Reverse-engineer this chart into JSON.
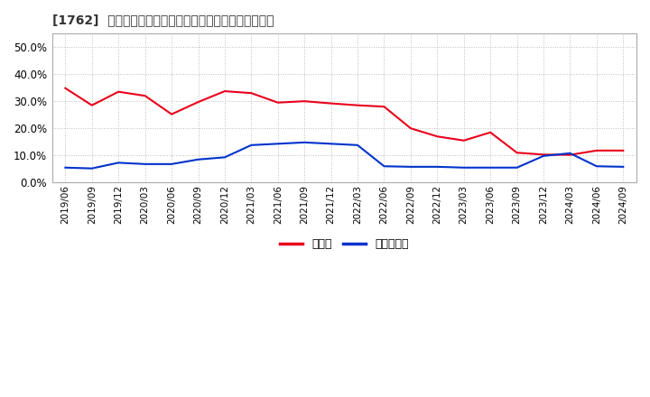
{
  "title": "[1762]  現顔金、有利子負債の総資産に対する比率の推移",
  "dates": [
    "2019/06",
    "2019/09",
    "2019/12",
    "2020/03",
    "2020/06",
    "2020/09",
    "2020/12",
    "2021/03",
    "2021/06",
    "2021/09",
    "2021/12",
    "2022/03",
    "2022/06",
    "2022/09",
    "2022/12",
    "2023/03",
    "2023/06",
    "2023/09",
    "2023/12",
    "2024/03",
    "2024/06",
    "2024/09"
  ],
  "genkin": [
    0.348,
    0.285,
    0.335,
    0.32,
    0.252,
    0.297,
    0.337,
    0.33,
    0.295,
    0.3,
    0.292,
    0.285,
    0.28,
    0.2,
    0.17,
    0.155,
    0.185,
    0.11,
    0.103,
    0.102,
    0.118,
    0.118
  ],
  "yushi": [
    0.055,
    0.052,
    0.073,
    0.068,
    0.068,
    0.085,
    0.093,
    0.138,
    0.143,
    0.148,
    0.143,
    0.138,
    0.06,
    0.058,
    0.058,
    0.055,
    0.055,
    0.055,
    0.098,
    0.108,
    0.06,
    0.058
  ],
  "genkin_color": "#e8001c",
  "yushi_color": "#0033cc",
  "plot_bg_color": "#ffffff",
  "fig_bg_color": "#ffffff",
  "grid_color": "#bbbbbb",
  "ylim": [
    0.0,
    0.55
  ],
  "yticks": [
    0.0,
    0.1,
    0.2,
    0.3,
    0.4,
    0.5
  ],
  "legend_labels": [
    "現顔金",
    "有利子負債"
  ]
}
